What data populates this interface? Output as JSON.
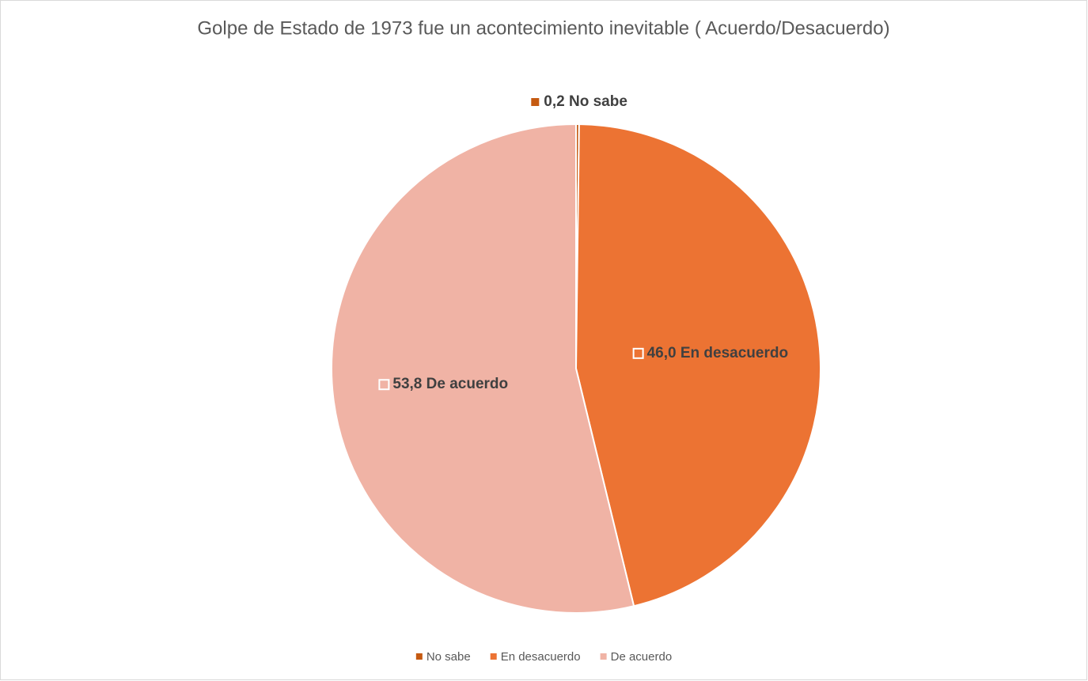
{
  "chart_data": {
    "type": "pie",
    "title": "Golpe de Estado de 1973 fue un acontecimiento inevitable ( Acuerdo/Desacuerdo)",
    "categories": [
      "No sabe",
      "En desacuerdo",
      "De acuerdo"
    ],
    "values": [
      0.2,
      46.0,
      53.8
    ],
    "value_labels": [
      "0,2",
      "46,0",
      "53,8"
    ],
    "colors": [
      "#c55a11",
      "#ec7333",
      "#f0b3a5"
    ],
    "legend": "bottom"
  }
}
